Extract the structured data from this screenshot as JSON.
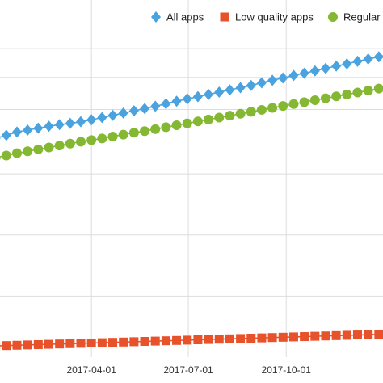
{
  "chart_data": {
    "type": "line",
    "x_tick_labels": [
      "2017-04-01",
      "2017-07-01",
      "2017-10-01"
    ],
    "x_tick_dates": [
      "2017-04-01",
      "2017-07-01",
      "2017-10-01"
    ],
    "x_range": [
      "2016-12-30",
      "2018-01-06"
    ],
    "grid": true,
    "legend_position": "top-right",
    "x": [
      "2017-01-01",
      "2017-01-11",
      "2017-01-21",
      "2017-01-31",
      "2017-02-10",
      "2017-02-20",
      "2017-03-02",
      "2017-03-12",
      "2017-03-22",
      "2017-04-01",
      "2017-04-11",
      "2017-04-21",
      "2017-05-01",
      "2017-05-11",
      "2017-05-21",
      "2017-05-31",
      "2017-06-10",
      "2017-06-20",
      "2017-06-30",
      "2017-07-10",
      "2017-07-20",
      "2017-07-30",
      "2017-08-09",
      "2017-08-19",
      "2017-08-29",
      "2017-09-08",
      "2017-09-18",
      "2017-09-28",
      "2017-10-08",
      "2017-10-18",
      "2017-10-28",
      "2017-11-07",
      "2017-11-17",
      "2017-11-27",
      "2017-12-07",
      "2017-12-17",
      "2017-12-27",
      "2018-01-06"
    ],
    "series": [
      {
        "name": "All apps",
        "color": "#4aa3df",
        "marker": "diamond",
        "values": [
          68.0,
          69.0,
          70.0,
          70.6,
          71.2,
          71.8,
          72.3,
          72.7,
          73.2,
          73.8,
          74.5,
          75.2,
          75.9,
          76.6,
          77.3,
          78.0,
          78.8,
          79.6,
          80.3,
          81.0,
          81.7,
          82.4,
          83.1,
          83.8,
          84.5,
          85.3,
          86.1,
          86.8,
          87.6,
          88.3,
          89.0,
          89.8,
          90.5,
          91.2,
          92.0,
          92.7,
          93.4,
          94.2
        ]
      },
      {
        "name": "Low quality apps",
        "color": "#e8522a",
        "marker": "square",
        "values": [
          3.5,
          3.6,
          3.7,
          3.8,
          3.9,
          4.0,
          4.1,
          4.2,
          4.3,
          4.4,
          4.5,
          4.6,
          4.7,
          4.8,
          4.9,
          5.0,
          5.1,
          5.2,
          5.3,
          5.4,
          5.5,
          5.6,
          5.7,
          5.8,
          5.9,
          6.0,
          6.1,
          6.2,
          6.3,
          6.4,
          6.5,
          6.6,
          6.7,
          6.8,
          6.9,
          7.0,
          7.1,
          7.2
        ]
      },
      {
        "name": "Regular a",
        "color": "#85b832",
        "marker": "circle",
        "values": [
          62.0,
          62.7,
          63.4,
          64.0,
          64.6,
          65.2,
          65.8,
          66.4,
          67.0,
          67.5,
          68.0,
          68.6,
          69.2,
          69.8,
          70.3,
          70.9,
          71.5,
          72.1,
          72.7,
          73.3,
          73.9,
          74.5,
          75.1,
          75.7,
          76.3,
          76.9,
          77.5,
          78.1,
          78.7,
          79.3,
          79.9,
          80.5,
          81.1,
          81.7,
          82.3,
          82.9,
          83.5,
          84.1
        ]
      }
    ],
    "title": "",
    "xlabel": "",
    "ylabel": ""
  }
}
